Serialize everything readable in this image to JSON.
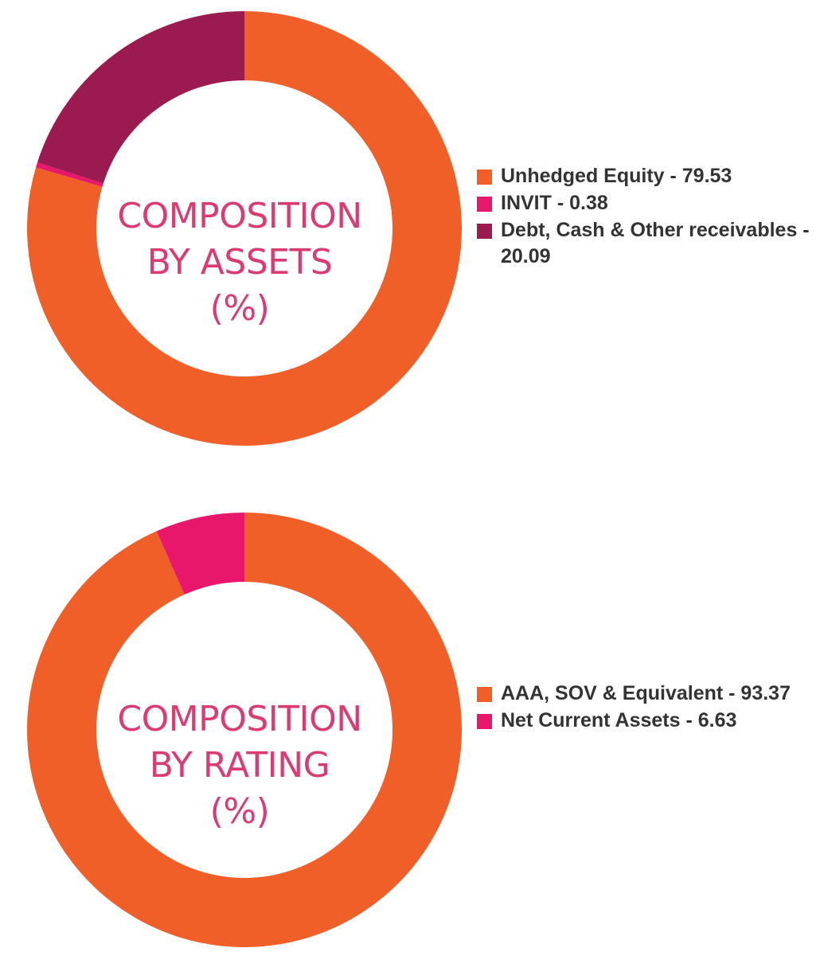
{
  "chart_data": [
    {
      "type": "pie",
      "donut": true,
      "title": "",
      "center_label": [
        "COMPOSITION",
        "BY ASSETS",
        "(%)"
      ],
      "legend_position": "right",
      "series": [
        {
          "name": "Unhedged Equity",
          "value": 79.53,
          "color": "#f15f29",
          "legend_text": "Unhedged Equity - 79.53"
        },
        {
          "name": "INVIT",
          "value": 0.38,
          "color": "#e8176b",
          "legend_text": "INVIT - 0.38"
        },
        {
          "name": "Debt, Cash & Other receivables",
          "value": 20.09,
          "color": "#9b1b50",
          "legend_text": "Debt, Cash & Other receivables - 20.09"
        }
      ]
    },
    {
      "type": "pie",
      "donut": true,
      "title": "",
      "center_label": [
        "COMPOSITION",
        "BY RATING",
        "(%)"
      ],
      "legend_position": "right",
      "series": [
        {
          "name": "AAA, SOV & Equivalent",
          "value": 93.37,
          "color": "#f15f29",
          "legend_text": "AAA, SOV & Equivalent - 93.37"
        },
        {
          "name": "Net Current Assets",
          "value": 6.63,
          "color": "#e8176b",
          "legend_text": "Net Current Assets - 6.63"
        }
      ]
    }
  ]
}
